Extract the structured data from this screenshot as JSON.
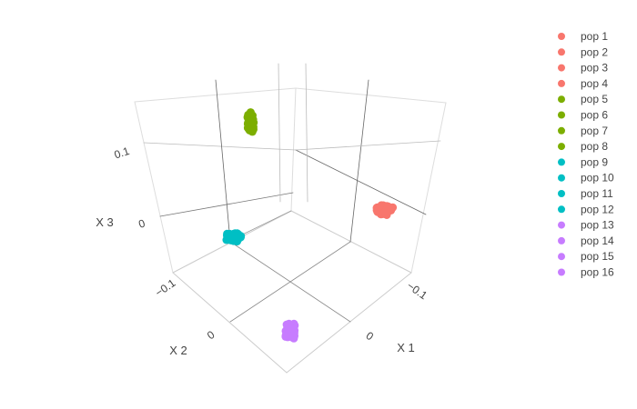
{
  "chart_data": {
    "type": "scatter3d",
    "axes": {
      "x": {
        "title": "X 1",
        "ticks": [
          "−0.1",
          "0"
        ]
      },
      "y": {
        "title": "X 2",
        "ticks": [
          "−0.1",
          "0"
        ]
      },
      "z": {
        "title": "X 3",
        "ticks": [
          "0",
          "0.1"
        ]
      }
    },
    "grid": true,
    "legend_position": "right",
    "clusters": [
      {
        "group": "green",
        "populations": [
          "pop 5",
          "pop 6",
          "pop 7",
          "pop 8"
        ],
        "x": [
          -0.06
        ],
        "y": [
          -0.08
        ],
        "z": [
          0.14
        ],
        "color": "#7cae00"
      },
      {
        "group": "salmon",
        "populations": [
          "pop 1",
          "pop 2",
          "pop 3",
          "pop 4"
        ],
        "x": [
          -0.12
        ],
        "y": [
          0.02
        ],
        "z": [
          0.02
        ],
        "color": "#f8766d"
      },
      {
        "group": "cyan",
        "populations": [
          "pop 9",
          "pop 10",
          "pop 11",
          "pop 12"
        ],
        "x": [
          0.02
        ],
        "y": [
          -0.12
        ],
        "z": [
          0.02
        ],
        "color": "#00bfc4"
      },
      {
        "group": "purple",
        "populations": [
          "pop 13",
          "pop 14",
          "pop 15",
          "pop 16"
        ],
        "x": [
          0.06
        ],
        "y": [
          0.06
        ],
        "z": [
          -0.05
        ],
        "color": "#c77cff"
      }
    ],
    "legend": [
      {
        "name": "pop 1",
        "color": "#f8766d"
      },
      {
        "name": "pop 2",
        "color": "#f8766d"
      },
      {
        "name": "pop 3",
        "color": "#f8766d"
      },
      {
        "name": "pop 4",
        "color": "#f8766d"
      },
      {
        "name": "pop 5",
        "color": "#7cae00"
      },
      {
        "name": "pop 6",
        "color": "#7cae00"
      },
      {
        "name": "pop 7",
        "color": "#7cae00"
      },
      {
        "name": "pop 8",
        "color": "#7cae00"
      },
      {
        "name": "pop 9",
        "color": "#00bfc4"
      },
      {
        "name": "pop 10",
        "color": "#00bfc4"
      },
      {
        "name": "pop 11",
        "color": "#00bfc4"
      },
      {
        "name": "pop 12",
        "color": "#00bfc4"
      },
      {
        "name": "pop 13",
        "color": "#c77cff"
      },
      {
        "name": "pop 14",
        "color": "#c77cff"
      },
      {
        "name": "pop 15",
        "color": "#c77cff"
      },
      {
        "name": "pop 16",
        "color": "#c77cff"
      }
    ]
  }
}
